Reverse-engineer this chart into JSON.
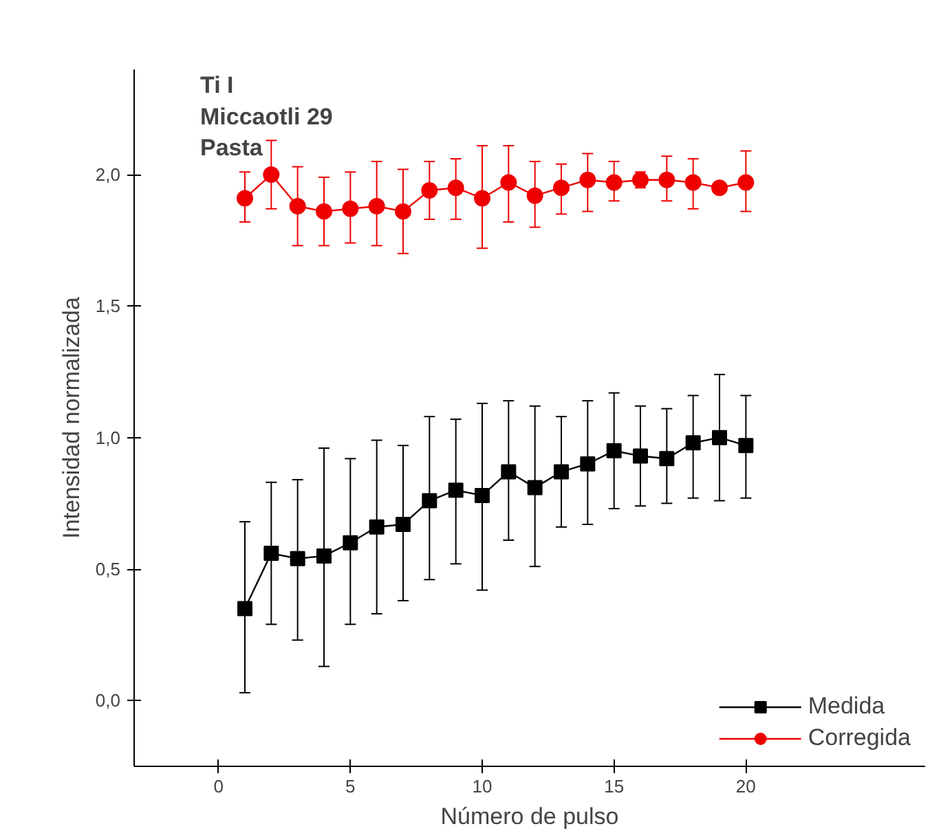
{
  "chart_data": {
    "type": "line",
    "title": "Ti I\nMiccaotli 29\nPasta",
    "xlabel": "Número de pulso",
    "ylabel": "Intensidad normalizada",
    "x": [
      1,
      2,
      3,
      4,
      5,
      6,
      7,
      8,
      9,
      10,
      11,
      12,
      13,
      14,
      15,
      16,
      17,
      18,
      19,
      20
    ],
    "xlim": [
      -3.2,
      26.8
    ],
    "xticks": [
      0,
      5,
      10,
      15,
      20
    ],
    "ylim": [
      -0.25,
      2.4
    ],
    "yticks": [
      {
        "value": 0,
        "label": "0,0"
      },
      {
        "value": 0.5,
        "label": "0,5"
      },
      {
        "value": 1,
        "label": "1,0"
      },
      {
        "value": 1.5,
        "label": "1,5"
      },
      {
        "value": 2,
        "label": "2,0"
      }
    ],
    "grid": false,
    "legend": "bottom right",
    "line_style": "solid",
    "series": [
      {
        "name": "Medida",
        "color": "#000000",
        "marker": "square",
        "values": [
          0.35,
          0.56,
          0.54,
          0.55,
          0.6,
          0.66,
          0.67,
          0.76,
          0.8,
          0.78,
          0.87,
          0.81,
          0.87,
          0.9,
          0.95,
          0.93,
          0.92,
          0.98,
          1.0,
          0.97
        ],
        "errors": [
          [
            0.03,
            0.68
          ],
          [
            0.29,
            0.83
          ],
          [
            0.23,
            0.84
          ],
          [
            0.13,
            0.96
          ],
          [
            0.29,
            0.92
          ],
          [
            0.33,
            0.99
          ],
          [
            0.38,
            0.97
          ],
          [
            0.46,
            1.08
          ],
          [
            0.52,
            1.07
          ],
          [
            0.42,
            1.13
          ],
          [
            0.61,
            1.14
          ],
          [
            0.51,
            1.12
          ],
          [
            0.66,
            1.08
          ],
          [
            0.67,
            1.14
          ],
          [
            0.73,
            1.17
          ],
          [
            0.74,
            1.12
          ],
          [
            0.75,
            1.11
          ],
          [
            0.77,
            1.16
          ],
          [
            0.76,
            1.24
          ],
          [
            0.77,
            1.16
          ]
        ]
      },
      {
        "name": "Corregida",
        "color": "#ee0000",
        "marker": "circle",
        "values": [
          1.91,
          2.0,
          1.88,
          1.86,
          1.87,
          1.88,
          1.86,
          1.94,
          1.95,
          1.91,
          1.97,
          1.92,
          1.95,
          1.98,
          1.97,
          1.98,
          1.98,
          1.97,
          1.95,
          1.97
        ],
        "errors": [
          [
            1.82,
            2.01
          ],
          [
            1.87,
            2.13
          ],
          [
            1.73,
            2.03
          ],
          [
            1.73,
            1.99
          ],
          [
            1.74,
            2.01
          ],
          [
            1.73,
            2.05
          ],
          [
            1.7,
            2.02
          ],
          [
            1.83,
            2.05
          ],
          [
            1.83,
            2.06
          ],
          [
            1.72,
            2.11
          ],
          [
            1.82,
            2.11
          ],
          [
            1.8,
            2.05
          ],
          [
            1.85,
            2.04
          ],
          [
            1.86,
            2.08
          ],
          [
            1.9,
            2.05
          ],
          [
            1.95,
            2.01
          ],
          [
            1.9,
            2.07
          ],
          [
            1.87,
            2.06
          ],
          [
            1.93,
            1.97
          ],
          [
            1.86,
            2.09
          ]
        ]
      }
    ]
  }
}
